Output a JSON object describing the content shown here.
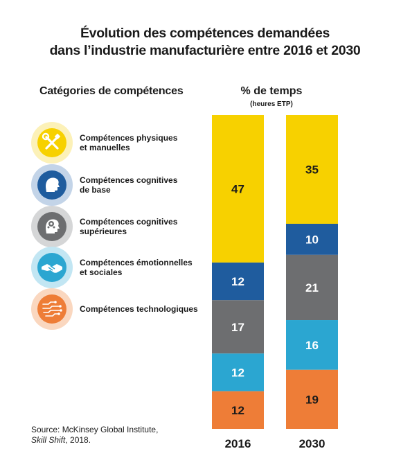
{
  "title": {
    "line1": "Évolution des compétences demandées",
    "line2": "dans l’industrie manufacturière entre 2016 et 2030"
  },
  "legend_heading": "Catégories de compétences",
  "value_heading": "% de temps",
  "value_subheading": "(heures ETP)",
  "categories": [
    {
      "line1": "Compétences physiques",
      "line2": "et manuelles",
      "color": "#f7d100",
      "halo": "#fcf1b8",
      "icon": "tools-icon"
    },
    {
      "line1": "Compétences cognitives",
      "line2": "de base",
      "color": "#1f5c9e",
      "halo": "#c3d4e8",
      "icon": "head-profile-icon"
    },
    {
      "line1": "Compétences cognitives",
      "line2": "supérieures",
      "color": "#6d6e70",
      "halo": "#d5d6d7",
      "icon": "brain-head-icon"
    },
    {
      "line1": "Compétences émotionnelles",
      "line2": "et sociales",
      "color": "#2ba6d1",
      "halo": "#c2e6f3",
      "icon": "handshake-icon"
    },
    {
      "line1": "Compétences technologiques",
      "line2": "",
      "color": "#ee7d37",
      "halo": "#fad7bf",
      "icon": "circuit-icon"
    }
  ],
  "chart_data": {
    "type": "bar",
    "stacked": true,
    "categories": [
      "2016",
      "2030"
    ],
    "series": [
      {
        "name": "Compétences physiques et manuelles",
        "values": [
          47,
          35
        ],
        "color": "#f7d100"
      },
      {
        "name": "Compétences cognitives de base",
        "values": [
          12,
          10
        ],
        "color": "#1f5c9e"
      },
      {
        "name": "Compétences cognitives supérieures",
        "values": [
          17,
          21
        ],
        "color": "#6d6e70"
      },
      {
        "name": "Compétences émotionnelles et sociales",
        "values": [
          12,
          16
        ],
        "color": "#2ba6d1"
      },
      {
        "name": "Compétences technologiques",
        "values": [
          12,
          19
        ],
        "color": "#ee7d37"
      }
    ],
    "title": "Évolution des compétences demandées dans l’industrie manufacturière entre 2016 et 2030",
    "ylabel": "% de temps (heures ETP)",
    "legend": "left",
    "grid": false
  },
  "source": {
    "line1": "Source: McKinsey Global Institute,",
    "italic": "Skill Shift",
    "tail": ", 2018."
  }
}
